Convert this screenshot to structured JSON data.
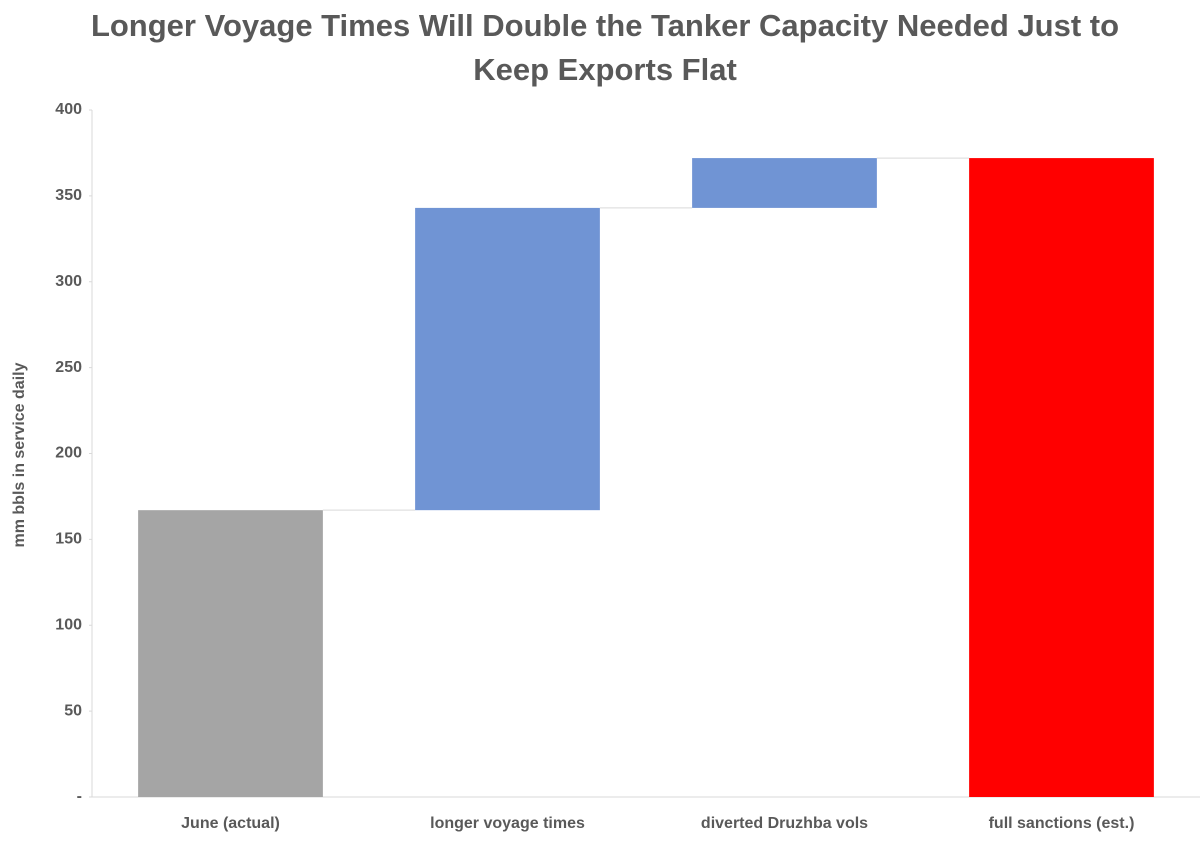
{
  "chart_data": {
    "type": "waterfall",
    "title": "Longer Voyage Times Will Double the Tanker Capacity Needed Just to Keep Exports Flat",
    "y_label": "mm bbls in service daily",
    "categories": [
      "June (actual)",
      "longer voyage times",
      "diverted Druzhba vols",
      "full sanctions (est.)"
    ],
    "measures": [
      "absolute",
      "relative",
      "relative",
      "total"
    ],
    "values": [
      167,
      176,
      29,
      372
    ],
    "colors": [
      "#a5a5a5",
      "#7094d4",
      "#7094d4",
      "#ff0000"
    ],
    "ylim": [
      0,
      400
    ],
    "yticks": [
      {
        "value": 0,
        "label": "-"
      },
      50,
      100,
      150,
      200,
      250,
      300,
      350,
      400
    ],
    "grid": false
  }
}
